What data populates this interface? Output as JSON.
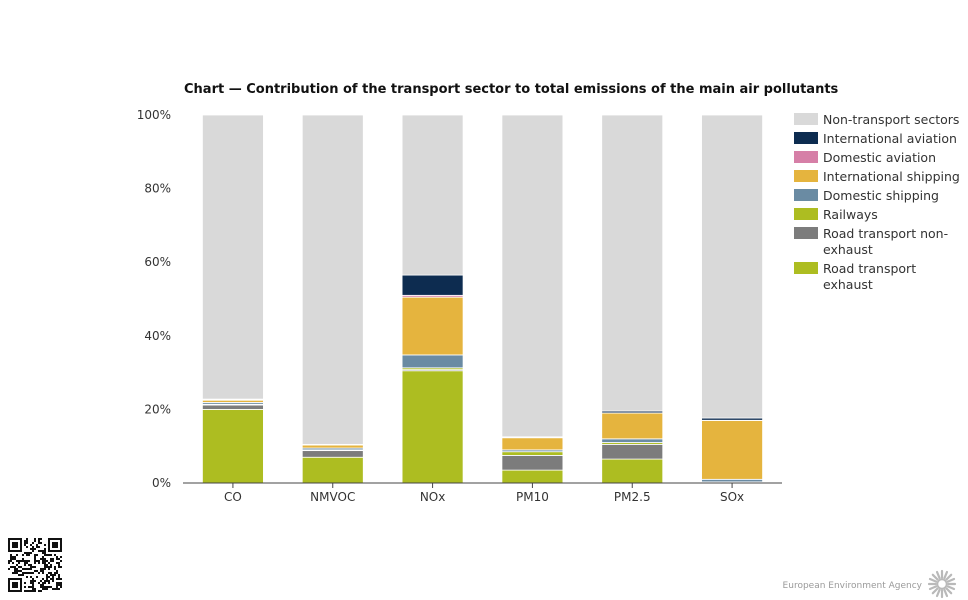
{
  "chart_data": {
    "type": "bar",
    "stacked": true,
    "title": "Chart — Contribution of the transport sector to total emissions of the main air pollutants",
    "categories": [
      "CO",
      "NMVOC",
      "NOx",
      "PM10",
      "PM2.5",
      "SOx"
    ],
    "ylim": [
      0,
      100
    ],
    "yticks": [
      "0%",
      "20%",
      "40%",
      "60%",
      "80%",
      "100%"
    ],
    "legend_position": "right",
    "series": [
      {
        "name": "Road transport exhaust",
        "color": "#adbd21",
        "values": [
          20.0,
          7.0,
          30.5,
          3.5,
          6.5,
          0.1
        ]
      },
      {
        "name": "Road transport non-exhaust",
        "color": "#7c7c7c",
        "values": [
          1.2,
          1.8,
          0.3,
          4.0,
          4.0,
          0.1
        ]
      },
      {
        "name": "Railways",
        "color": "#adbd21",
        "values": [
          0.2,
          0.2,
          0.5,
          1.0,
          0.5,
          0.1
        ]
      },
      {
        "name": "Domestic shipping",
        "color": "#6a8ba3",
        "values": [
          0.5,
          0.5,
          3.5,
          0.5,
          1.0,
          0.7
        ]
      },
      {
        "name": "International shipping",
        "color": "#e5b43e",
        "values": [
          0.6,
          0.8,
          15.7,
          3.3,
          7.0,
          16.0
        ]
      },
      {
        "name": "Domestic aviation",
        "color": "#d67fa7",
        "values": [
          0.1,
          0.1,
          0.5,
          0.05,
          0.05,
          0.05
        ]
      },
      {
        "name": "International aviation",
        "color": "#0d2c50",
        "values": [
          0.2,
          0.1,
          5.5,
          0.2,
          0.5,
          0.6
        ]
      },
      {
        "name": "Non-transport sectors",
        "color": "#d9d9d9",
        "values": [
          77.2,
          89.5,
          43.5,
          87.45,
          80.45,
          82.35
        ]
      }
    ]
  },
  "footer": {
    "agency": "European Environment Agency",
    "qr_icon": "qr-code-icon",
    "logo_icon": "eea-logo-icon"
  }
}
